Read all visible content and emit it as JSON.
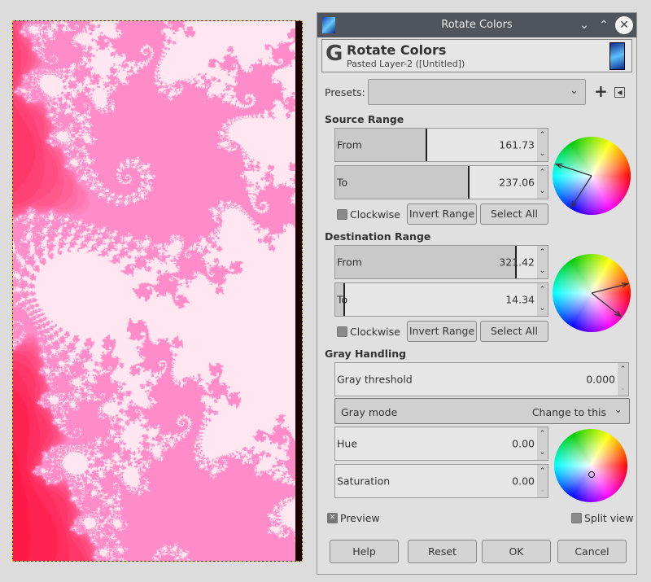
{
  "dialog": {
    "window_title": "Rotate Colors",
    "header_title": "Rotate Colors",
    "header_subtitle": "Pasted Layer-2 ([Untitled])"
  },
  "presets": {
    "label": "Presets:",
    "value": ""
  },
  "source": {
    "title": "Source Range",
    "from_label": "From",
    "from": "161.73",
    "to_label": "To",
    "to": "237.06",
    "clockwise": "Clockwise",
    "clockwise_checked": false,
    "invert": "Invert Range",
    "select_all": "Select All"
  },
  "destination": {
    "title": "Destination Range",
    "from_label": "From",
    "from": "321.42",
    "to_label": "To",
    "to": "14.34",
    "clockwise": "Clockwise",
    "clockwise_checked": false,
    "invert": "Invert Range",
    "select_all": "Select All"
  },
  "gray": {
    "title": "Gray Handling",
    "threshold_label": "Gray threshold",
    "threshold": "0.000",
    "mode_label": "Gray mode",
    "mode": "Change to this",
    "hue_label": "Hue",
    "hue": "0.00",
    "sat_label": "Saturation",
    "sat": "0.00"
  },
  "preview": {
    "label": "Preview",
    "checked": true
  },
  "split_view": {
    "label": "Split view",
    "checked": false
  },
  "buttons": {
    "help": "Help",
    "reset": "Reset",
    "ok": "OK",
    "cancel": "Cancel"
  },
  "colors": {
    "titlebar": "#4f555b",
    "fractal_primary": "#ff2020",
    "fractal_highlight": "#ff80c0"
  }
}
